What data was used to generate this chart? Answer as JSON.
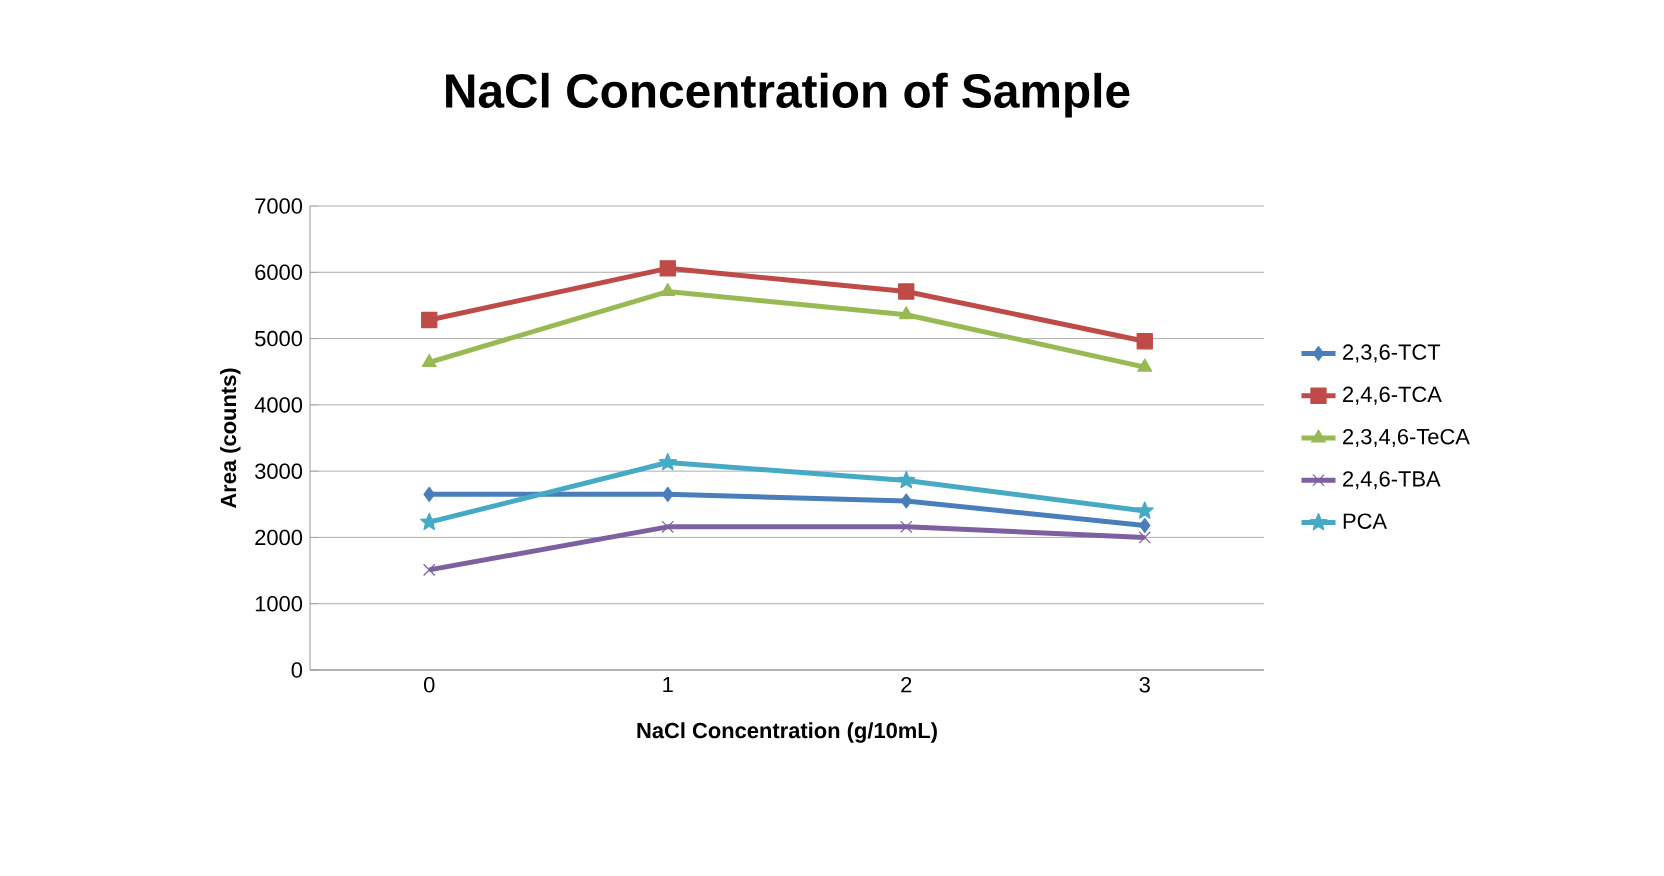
{
  "chart_data": {
    "type": "line",
    "title": "NaCl Concentration of Sample",
    "xlabel": "NaCl Concentration (g/10mL)",
    "ylabel": "Area (counts)",
    "categories": [
      "0",
      "1",
      "2",
      "3"
    ],
    "series": [
      {
        "name": "2,3,6-TCT",
        "color": "#4a7ebb",
        "marker": "diamond",
        "values": [
          2650,
          2650,
          2550,
          2180
        ]
      },
      {
        "name": "2,4,6-TCA",
        "color": "#be4b48",
        "marker": "square",
        "values": [
          5280,
          6060,
          5710,
          4960
        ]
      },
      {
        "name": "2,3,4,6-TeCA",
        "color": "#98b954",
        "marker": "triangle",
        "values": [
          4640,
          5710,
          5360,
          4570
        ]
      },
      {
        "name": "2,4,6-TBA",
        "color": "#7d60a0",
        "marker": "cross",
        "values": [
          1510,
          2160,
          2160,
          2000
        ]
      },
      {
        "name": "PCA",
        "color": "#46aac5",
        "marker": "star",
        "values": [
          2230,
          3130,
          2860,
          2400
        ]
      }
    ],
    "ylim": [
      0,
      7000
    ],
    "yticks": [
      0,
      1000,
      2000,
      3000,
      4000,
      5000,
      6000,
      7000
    ],
    "grid": "y",
    "legend": "right"
  }
}
